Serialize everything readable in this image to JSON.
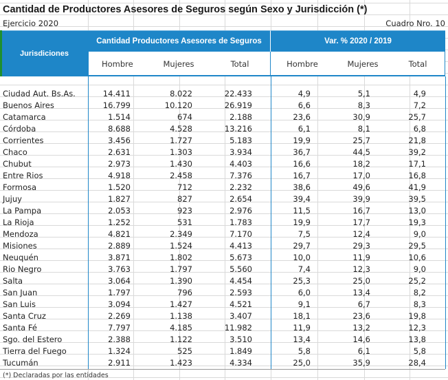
{
  "title": "Cantidad de Productores Asesores de Seguros según Sexo y Jurisdicción (*)",
  "ejercicio": "Ejercicio  2020",
  "cuadro": "Cuadro Nro. 10",
  "header": {
    "jurisdicciones": "Jurisdiciones",
    "group1": "Cantidad Productores Asesores de Seguros",
    "group2": "Var. % 2020 / 2019",
    "sub": [
      "Hombre",
      "Mujeres",
      "Total",
      "Hombre",
      "Mujeres",
      "Total"
    ]
  },
  "rows": [
    {
      "name": "Ciudad Aut. Bs.As.",
      "h": "14.411",
      "m": "8.022",
      "t": "22.433",
      "vh": "4,9",
      "vm": "5,1",
      "vt": "4,9"
    },
    {
      "name": "Buenos Aires",
      "h": "16.799",
      "m": "10.120",
      "t": "26.919",
      "vh": "6,6",
      "vm": "8,3",
      "vt": "7,2"
    },
    {
      "name": "Catamarca",
      "h": "1.514",
      "m": "674",
      "t": "2.188",
      "vh": "23,6",
      "vm": "30,9",
      "vt": "25,7"
    },
    {
      "name": "Córdoba",
      "h": "8.688",
      "m": "4.528",
      "t": "13.216",
      "vh": "6,1",
      "vm": "8,1",
      "vt": "6,8"
    },
    {
      "name": "Corrientes",
      "h": "3.456",
      "m": "1.727",
      "t": "5.183",
      "vh": "19,9",
      "vm": "25,7",
      "vt": "21,8"
    },
    {
      "name": "Chaco",
      "h": "2.631",
      "m": "1.303",
      "t": "3.934",
      "vh": "36,7",
      "vm": "44,5",
      "vt": "39,2"
    },
    {
      "name": "Chubut",
      "h": "2.973",
      "m": "1.430",
      "t": "4.403",
      "vh": "16,6",
      "vm": "18,2",
      "vt": "17,1"
    },
    {
      "name": "Entre Rios",
      "h": "4.918",
      "m": "2.458",
      "t": "7.376",
      "vh": "16,7",
      "vm": "17,0",
      "vt": "16,8"
    },
    {
      "name": "Formosa",
      "h": "1.520",
      "m": "712",
      "t": "2.232",
      "vh": "38,6",
      "vm": "49,6",
      "vt": "41,9"
    },
    {
      "name": "Jujuy",
      "h": "1.827",
      "m": "827",
      "t": "2.654",
      "vh": "39,4",
      "vm": "39,9",
      "vt": "39,5"
    },
    {
      "name": "La Pampa",
      "h": "2.053",
      "m": "923",
      "t": "2.976",
      "vh": "11,5",
      "vm": "16,7",
      "vt": "13,0"
    },
    {
      "name": "La Rioja",
      "h": "1.252",
      "m": "531",
      "t": "1.783",
      "vh": "19,9",
      "vm": "17,7",
      "vt": "19,3"
    },
    {
      "name": "Mendoza",
      "h": "4.821",
      "m": "2.349",
      "t": "7.170",
      "vh": "7,5",
      "vm": "12,4",
      "vt": "9,0"
    },
    {
      "name": "Misiones",
      "h": "2.889",
      "m": "1.524",
      "t": "4.413",
      "vh": "29,7",
      "vm": "29,3",
      "vt": "29,5"
    },
    {
      "name": "Neuquén",
      "h": "3.871",
      "m": "1.802",
      "t": "5.673",
      "vh": "10,0",
      "vm": "11,9",
      "vt": "10,6"
    },
    {
      "name": "Rio Negro",
      "h": "3.763",
      "m": "1.797",
      "t": "5.560",
      "vh": "7,4",
      "vm": "12,3",
      "vt": "9,0"
    },
    {
      "name": "Salta",
      "h": "3.064",
      "m": "1.390",
      "t": "4.454",
      "vh": "25,3",
      "vm": "25,0",
      "vt": "25,2"
    },
    {
      "name": "San Juan",
      "h": "1.797",
      "m": "796",
      "t": "2.593",
      "vh": "6,0",
      "vm": "13,4",
      "vt": "8,2"
    },
    {
      "name": "San Luis",
      "h": "3.094",
      "m": "1.427",
      "t": "4.521",
      "vh": "9,1",
      "vm": "6,7",
      "vt": "8,3"
    },
    {
      "name": "Santa Cruz",
      "h": "2.269",
      "m": "1.138",
      "t": "3.407",
      "vh": "18,1",
      "vm": "23,6",
      "vt": "19,8"
    },
    {
      "name": "Santa Fé",
      "h": "7.797",
      "m": "4.185",
      "t": "11.982",
      "vh": "11,9",
      "vm": "13,2",
      "vt": "12,3"
    },
    {
      "name": "Sgo. del Estero",
      "h": "2.388",
      "m": "1.122",
      "t": "3.510",
      "vh": "13,4",
      "vm": "14,6",
      "vt": "13,8"
    },
    {
      "name": "Tierra del Fuego",
      "h": "1.324",
      "m": "525",
      "t": "1.849",
      "vh": "5,8",
      "vm": "6,1",
      "vt": "5,8"
    },
    {
      "name": "Tucumán",
      "h": "2.911",
      "m": "1.423",
      "t": "4.334",
      "vh": "25,0",
      "vm": "35,9",
      "vt": "28,4"
    }
  ],
  "note": "(*) Declaradas por las entidades",
  "colors": {
    "header_blue": "#1e86c8",
    "accent_green": "#1f8f2f"
  }
}
